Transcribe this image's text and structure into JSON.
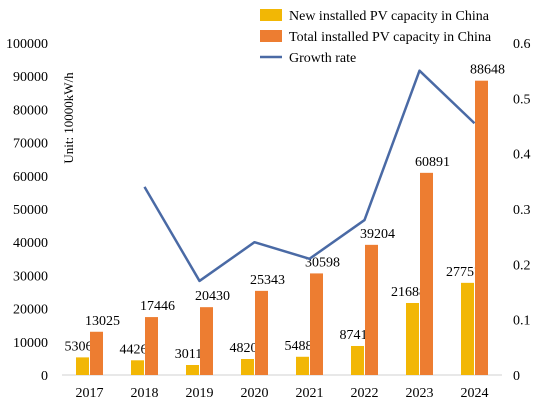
{
  "chart_data": {
    "type": "bar",
    "categories": [
      "2017",
      "2018",
      "2019",
      "2020",
      "2021",
      "2022",
      "2023",
      "2024"
    ],
    "series": [
      {
        "name": "New installed PV capacity in China",
        "kind": "bar",
        "axis": "left",
        "color": "#f2b705",
        "values": [
          5306,
          4426,
          3011,
          4820,
          5488,
          8741,
          21688,
          27757
        ]
      },
      {
        "name": "Total installed PV capacity in China",
        "kind": "bar",
        "axis": "left",
        "color": "#ed7d31",
        "values": [
          13025,
          17446,
          20430,
          25343,
          30598,
          39204,
          60891,
          88648
        ]
      },
      {
        "name": "Growth rate",
        "kind": "line",
        "axis": "right",
        "color": "#4a6aa5",
        "values": [
          null,
          0.34,
          0.17,
          0.24,
          0.21,
          0.28,
          0.55,
          0.455
        ]
      }
    ],
    "ylabel": "Unit: 10000kW/h",
    "ylim": [
      0,
      100000
    ],
    "yticks": [
      "0",
      "10000",
      "20000",
      "30000",
      "40000",
      "50000",
      "60000",
      "70000",
      "80000",
      "90000",
      "100000"
    ],
    "y2lim": [
      0,
      0.6
    ],
    "y2ticks": [
      "0",
      "0.1",
      "0.2",
      "0.3",
      "0.4",
      "0.5",
      "0.6"
    ],
    "legend_position": "top-right",
    "grid": false
  }
}
